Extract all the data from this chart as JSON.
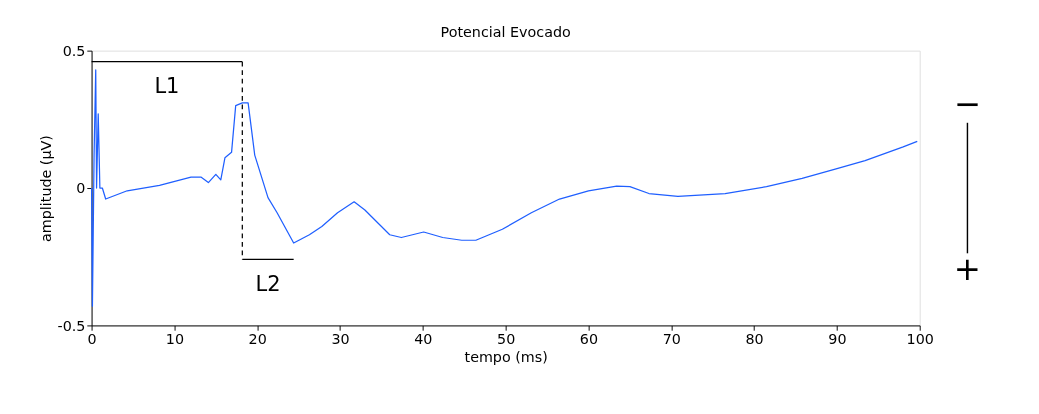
{
  "chart_data": {
    "type": "line",
    "title": "Potencial Evocado",
    "xlabel": "tempo (ms)",
    "ylabel": "amplitude (µV)",
    "xlim": [
      0,
      100
    ],
    "xticks": [
      0,
      10,
      20,
      30,
      40,
      50,
      60,
      70,
      80,
      90,
      100
    ],
    "ylim": [
      -0.5,
      0.5
    ],
    "yticks": [
      -0.5,
      0,
      0.5
    ],
    "grid": false,
    "marker": "none",
    "series": [
      {
        "color": "#1f5fff",
        "line_style": "solid",
        "x": [
          0,
          0.1,
          0.3,
          0.5,
          0.6,
          0.8,
          1.0,
          1.3,
          1.7,
          4.3,
          8.2,
          12.0,
          13.2,
          14.1,
          15.0,
          15.6,
          16.1,
          16.9,
          17.4,
          18.2,
          18.9,
          19.7,
          21.3,
          22.4,
          24.4,
          26.3,
          27.8,
          29.7,
          31.7,
          33.0,
          36.0,
          37.4,
          40.1,
          42.4,
          44.7,
          46.4,
          49.6,
          53.1,
          56.5,
          60.0,
          63.4,
          65.0,
          67.3,
          70.8,
          76.5,
          81.5,
          85.8,
          89.9,
          93.4,
          98.0,
          99.7
        ],
        "values": [
          0,
          -0.43,
          0.12,
          0.43,
          0.0,
          0.27,
          0.0,
          0.0,
          -0.04,
          -0.01,
          0.01,
          0.04,
          0.04,
          0.02,
          0.05,
          0.03,
          0.11,
          0.13,
          0.3,
          0.31,
          0.31,
          0.12,
          -0.035,
          -0.09,
          -0.2,
          -0.17,
          -0.14,
          -0.09,
          -0.05,
          -0.08,
          -0.17,
          -0.18,
          -0.16,
          -0.18,
          -0.19,
          -0.19,
          -0.15,
          -0.09,
          -0.04,
          -0.01,
          0.007,
          0.005,
          -0.02,
          -0.03,
          -0.02,
          0.005,
          0.035,
          0.07,
          0.1,
          0.15,
          0.17
        ]
      },
      {
        "color": "#000000",
        "line_style": "solid",
        "x": [
          0,
          18.2
        ],
        "values": [
          0.46,
          0.46
        ]
      },
      {
        "color": "#000000",
        "line_style": "solid",
        "x": [
          18.2,
          24.4
        ],
        "values": [
          -0.26,
          -0.26
        ]
      },
      {
        "color": "#000000",
        "line_style": "dashed",
        "x": [
          18.2,
          18.2
        ],
        "values": [
          0.46,
          -0.26
        ]
      }
    ],
    "annotations": [
      {
        "text": "L1",
        "x": 9.1,
        "y": 0.46
      },
      {
        "text": "L2",
        "x": 21.3,
        "y": -0.26
      },
      "−",
      "+"
    ]
  }
}
